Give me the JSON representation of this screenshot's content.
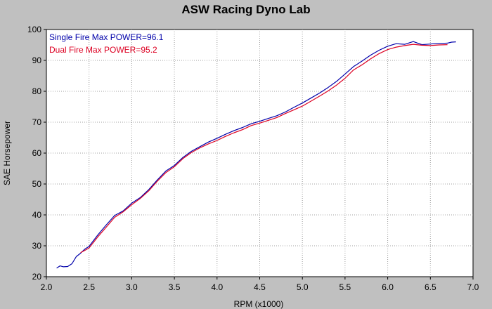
{
  "chart_data": {
    "type": "line",
    "title": "ASW Racing Dyno Lab",
    "xlabel": "RPM (x1000)",
    "ylabel": "SAE Horsepower",
    "xlim": [
      2.0,
      7.0
    ],
    "ylim": [
      20,
      100
    ],
    "xticks": [
      "2.0",
      "2.5",
      "3.0",
      "3.5",
      "4.0",
      "4.5",
      "5.0",
      "5.5",
      "6.0",
      "6.5",
      "7.0"
    ],
    "yticks": [
      "20",
      "30",
      "40",
      "50",
      "60",
      "70",
      "80",
      "90",
      "100"
    ],
    "grid": true,
    "legend_position": "top-left",
    "series": [
      {
        "name": "Single Fire",
        "legend_label": "Single Fire  Max POWER=96.1",
        "color": "#0000aa",
        "x": [
          2.12,
          2.16,
          2.2,
          2.25,
          2.3,
          2.35,
          2.4,
          2.45,
          2.5,
          2.6,
          2.7,
          2.8,
          2.9,
          3.0,
          3.1,
          3.2,
          3.3,
          3.4,
          3.5,
          3.6,
          3.7,
          3.8,
          3.9,
          4.0,
          4.1,
          4.2,
          4.3,
          4.4,
          4.5,
          4.6,
          4.7,
          4.8,
          4.9,
          5.0,
          5.1,
          5.2,
          5.3,
          5.4,
          5.5,
          5.6,
          5.7,
          5.8,
          5.9,
          6.0,
          6.1,
          6.2,
          6.3,
          6.4,
          6.5,
          6.6,
          6.7,
          6.75,
          6.8
        ],
        "y": [
          22.8,
          23.5,
          23.2,
          23.3,
          24.2,
          26.5,
          27.6,
          28.9,
          29.8,
          33.4,
          36.7,
          39.8,
          41.3,
          43.8,
          45.6,
          48.2,
          51.3,
          54.2,
          56.0,
          58.6,
          60.6,
          62.1,
          63.6,
          64.8,
          66.1,
          67.3,
          68.3,
          69.5,
          70.3,
          71.2,
          72.1,
          73.3,
          74.8,
          76.2,
          77.8,
          79.4,
          81.2,
          83.2,
          85.6,
          88.0,
          89.8,
          91.7,
          93.3,
          94.6,
          95.4,
          95.2,
          96.1,
          95.1,
          95.3,
          95.5,
          95.6,
          95.9,
          96.0
        ]
      },
      {
        "name": "Dual Fire",
        "legend_label": "Dual Fire  Max POWER=95.2",
        "color": "#dd0022",
        "x": [
          2.4,
          2.45,
          2.5,
          2.6,
          2.7,
          2.8,
          2.9,
          3.0,
          3.1,
          3.2,
          3.3,
          3.4,
          3.5,
          3.6,
          3.7,
          3.8,
          3.9,
          4.0,
          4.1,
          4.2,
          4.3,
          4.4,
          4.5,
          4.6,
          4.7,
          4.8,
          4.9,
          5.0,
          5.1,
          5.2,
          5.3,
          5.4,
          5.5,
          5.6,
          5.7,
          5.8,
          5.9,
          6.0,
          6.1,
          6.2,
          6.3,
          6.4,
          6.5,
          6.6,
          6.7
        ],
        "y": [
          27.8,
          28.5,
          29.3,
          32.8,
          36.0,
          39.2,
          41.0,
          43.3,
          45.3,
          47.8,
          50.9,
          53.7,
          55.6,
          58.2,
          60.2,
          61.7,
          63.0,
          64.1,
          65.4,
          66.6,
          67.6,
          68.9,
          69.7,
          70.6,
          71.5,
          72.8,
          74.0,
          75.2,
          76.8,
          78.4,
          80.1,
          82.0,
          84.2,
          86.9,
          88.6,
          90.5,
          92.2,
          93.5,
          94.3,
          94.8,
          95.2,
          94.9,
          94.8,
          95.0,
          95.1
        ]
      }
    ]
  }
}
